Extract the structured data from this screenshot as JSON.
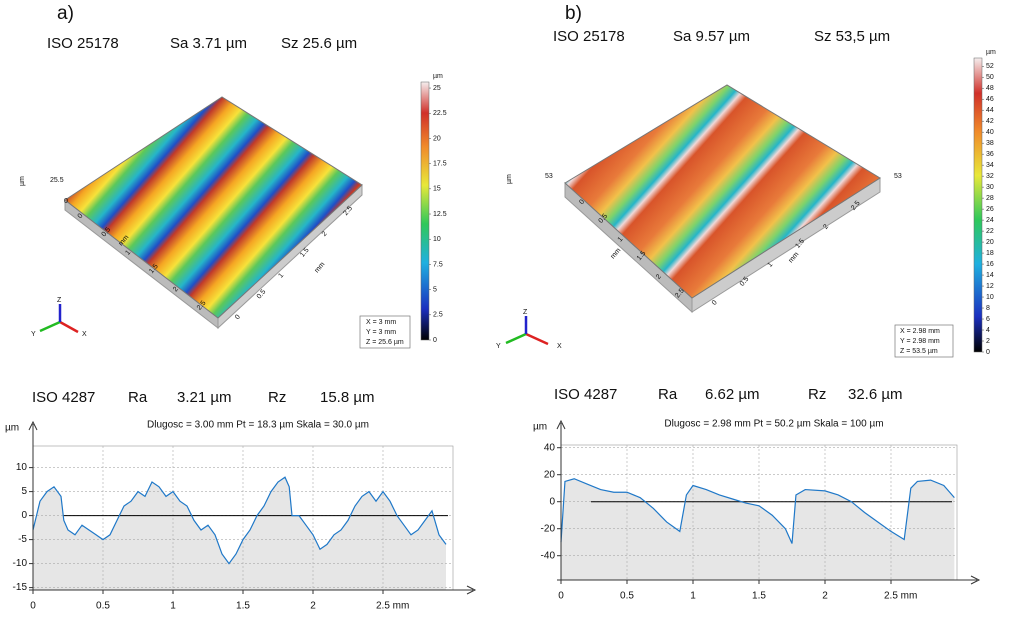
{
  "panels": [
    {
      "label": "a)",
      "iso25178": {
        "standard": "ISO 25178",
        "sa": "Sa 3.71 µm",
        "sz": "Sz 25.6 µm"
      },
      "surface": {
        "z_label": "25.5",
        "z_zero": "0",
        "z_unit": "µm",
        "unit": "mm",
        "axis_x": [
          "0",
          "0.5",
          "1",
          "1.5",
          "2",
          "2.5"
        ],
        "axis_y": [
          "0",
          "0.5",
          "1",
          "1.5",
          "2",
          "2.5"
        ]
      },
      "colorbar": {
        "unit": "µm",
        "range": [
          0,
          25.6
        ],
        "ticks": [
          0,
          2.5,
          5,
          7.5,
          10,
          12.5,
          15,
          17.5,
          20,
          22.5,
          25
        ]
      },
      "info": [
        "X = 3 mm",
        "Y = 3 mm",
        "Z = 25.6 µm"
      ],
      "triad": [
        "X",
        "Y",
        "Z"
      ],
      "iso4287": {
        "standard": "ISO 4287",
        "ra_label": "Ra",
        "ra": "3.21 µm",
        "rz_label": "Rz",
        "rz": "15.8 µm"
      }
    },
    {
      "label": "b)",
      "iso25178": {
        "standard": "ISO 25178",
        "sa": "Sa  9.57 µm",
        "sz": "Sz   53,5 µm"
      },
      "surface": {
        "z_label": "53",
        "z_zero": "0",
        "z_unit": "µm",
        "unit": "mm",
        "axis_x": [
          "0",
          "0.5",
          "1",
          "1.5",
          "2",
          "2.5"
        ],
        "axis_y": [
          "0",
          "0.5",
          "1",
          "1.5",
          "2",
          "2.5"
        ]
      },
      "colorbar": {
        "unit": "µm",
        "range": [
          0,
          53.5
        ],
        "ticks": [
          0,
          2,
          4,
          6,
          8,
          10,
          12,
          14,
          16,
          18,
          20,
          22,
          24,
          26,
          28,
          30,
          32,
          34,
          36,
          38,
          40,
          42,
          44,
          46,
          48,
          50,
          52
        ]
      },
      "info": [
        "X = 2.98 mm",
        "Y = 2.98 mm",
        "Z = 53.5 µm"
      ],
      "triad": [
        "X",
        "Y",
        "Z"
      ],
      "iso4287": {
        "standard": "ISO 4287",
        "ra_label": "Ra",
        "ra": "6.62 µm",
        "rz_label": "Rz",
        "rz": "32.6 µm"
      }
    }
  ],
  "chart_data": [
    {
      "type": "line",
      "title": "Dlugosc = 3.00 mm  Pt = 18.3 µm  Skala = 30.0 µm",
      "y_label": "µm",
      "x": [
        0,
        0.05,
        0.1,
        0.15,
        0.2,
        0.22,
        0.25,
        0.3,
        0.35,
        0.4,
        0.45,
        0.5,
        0.55,
        0.6,
        0.65,
        0.7,
        0.75,
        0.8,
        0.85,
        0.9,
        0.95,
        1.0,
        1.05,
        1.1,
        1.15,
        1.2,
        1.25,
        1.3,
        1.35,
        1.4,
        1.45,
        1.5,
        1.55,
        1.6,
        1.65,
        1.7,
        1.75,
        1.8,
        1.83,
        1.85,
        1.9,
        1.95,
        2.0,
        2.05,
        2.1,
        2.15,
        2.2,
        2.25,
        2.3,
        2.35,
        2.4,
        2.45,
        2.5,
        2.55,
        2.6,
        2.65,
        2.7,
        2.75,
        2.8,
        2.85,
        2.9,
        2.95
      ],
      "color": "#1f78c8",
      "values": [
        -3,
        3,
        5,
        6,
        4,
        -1,
        -3,
        -4,
        -2,
        -3,
        -4,
        -5,
        -4,
        -1,
        2,
        3,
        5,
        4,
        7,
        6,
        4,
        5,
        3,
        2,
        -1,
        -3,
        -2,
        -4,
        -8,
        -10,
        -8,
        -5,
        -3,
        0,
        2,
        5,
        7,
        8,
        6,
        0,
        0,
        -2,
        -4,
        -7,
        -6,
        -4,
        -3,
        -1,
        2,
        4,
        5,
        3,
        5,
        3,
        0,
        -2,
        -4,
        -3,
        -1,
        1,
        -4,
        -6
      ],
      "xlim": [
        0,
        3.0
      ],
      "xticks": [
        0,
        0.5,
        1,
        1.5,
        2,
        {
          "value": 2.5,
          "label": "2.5 mm"
        }
      ],
      "ylim": [
        -15.5,
        14.5
      ],
      "yticks": [
        -15,
        -10,
        -5,
        0,
        5,
        10
      ],
      "grid": true,
      "fill": "#e6e6e6"
    },
    {
      "type": "line",
      "title": "Dlugosc = 2.98 mm  Pt = 50.2 µm  Skala = 100 µm",
      "y_label": "µm",
      "x": [
        0,
        0.03,
        0.1,
        0.2,
        0.3,
        0.4,
        0.5,
        0.6,
        0.7,
        0.8,
        0.9,
        0.95,
        1.0,
        1.1,
        1.2,
        1.3,
        1.4,
        1.5,
        1.6,
        1.7,
        1.75,
        1.78,
        1.85,
        2.0,
        2.1,
        2.2,
        2.3,
        2.4,
        2.5,
        2.6,
        2.65,
        2.7,
        2.8,
        2.9,
        2.98
      ],
      "color": "#1f78c8",
      "values": [
        -30,
        15,
        17,
        13,
        9,
        7,
        7,
        3,
        -5,
        -15,
        -22,
        5,
        12,
        9,
        5,
        2,
        -1,
        -3,
        -10,
        -20,
        -31,
        5,
        9,
        8,
        5,
        0,
        -8,
        -15,
        -22,
        -28,
        10,
        15,
        16,
        12,
        3
      ],
      "xlim": [
        0,
        3.0
      ],
      "xticks": [
        0,
        0.5,
        1,
        1.5,
        2,
        {
          "value": 2.5,
          "label": "2.5 mm"
        }
      ],
      "ylim": [
        -58,
        42
      ],
      "yticks": [
        -40,
        -20,
        0,
        20,
        40
      ],
      "grid": true,
      "fill": "#e6e6e6"
    }
  ]
}
